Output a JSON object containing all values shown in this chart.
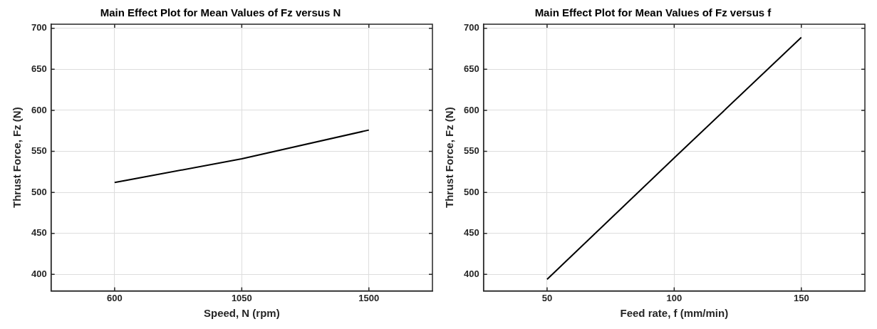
{
  "chart_data": [
    {
      "type": "line",
      "title": "Main Effect Plot for Mean Values of Fz versus N",
      "xlabel": "Speed, N (rpm)",
      "ylabel": "Thrust Force, Fz (N)",
      "x": [
        600,
        1050,
        1500
      ],
      "series": [
        {
          "color": "#000000",
          "values": [
            512,
            541,
            576
          ]
        }
      ],
      "xlim": [
        375,
        1725
      ],
      "xticks": [
        600,
        1050,
        1500
      ],
      "ylim": [
        380,
        705
      ],
      "yticks": [
        400,
        450,
        500,
        550,
        600,
        650,
        700
      ],
      "grid": true,
      "legend": false,
      "marker": "none",
      "line_style": "solid"
    },
    {
      "type": "line",
      "title": "Main Effect Plot for Mean Values of Fz versus f",
      "xlabel": "Feed rate, f (mm/min)",
      "ylabel": "Thrust Force, Fz (N)",
      "x": [
        50,
        100,
        150
      ],
      "series": [
        {
          "color": "#000000",
          "values": [
            394,
            542,
            689
          ]
        }
      ],
      "xlim": [
        25,
        175
      ],
      "xticks": [
        50,
        100,
        150
      ],
      "ylim": [
        380,
        705
      ],
      "yticks": [
        400,
        450,
        500,
        550,
        600,
        650,
        700
      ],
      "grid": true,
      "legend": false,
      "marker": "none",
      "line_style": "solid"
    }
  ]
}
